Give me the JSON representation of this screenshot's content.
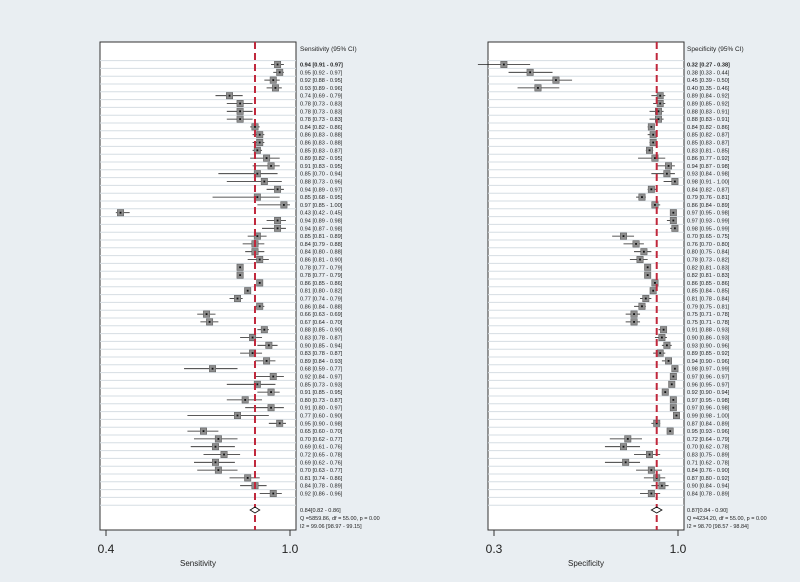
{
  "chart_data": [
    {
      "type": "forest",
      "title": "Sensitivity (95% CI)",
      "xlabel": "Sensitivity",
      "scale": "log",
      "xlim": [
        0.4,
        1.0
      ],
      "ticks": [
        {
          "value": 0.4,
          "label": "0.4"
        },
        {
          "value": 1.0,
          "label": "1.0"
        }
      ],
      "pooled_line": 0.84,
      "studies": [
        {
          "est": 0.94,
          "lo": 0.91,
          "hi": 0.97,
          "label": "0.94 [0.91 - 0.97]"
        },
        {
          "est": 0.95,
          "lo": 0.92,
          "hi": 0.97,
          "label": "0.95 [0.92 - 0.97]"
        },
        {
          "est": 0.92,
          "lo": 0.88,
          "hi": 0.95,
          "label": "0.92 [0.88 - 0.95]"
        },
        {
          "est": 0.93,
          "lo": 0.89,
          "hi": 0.96,
          "label": "0.93 [0.89 - 0.96]"
        },
        {
          "est": 0.74,
          "lo": 0.69,
          "hi": 0.79,
          "label": "0.74 [0.69 - 0.79]"
        },
        {
          "est": 0.78,
          "lo": 0.73,
          "hi": 0.83,
          "label": "0.78 [0.73 - 0.83]"
        },
        {
          "est": 0.78,
          "lo": 0.73,
          "hi": 0.83,
          "label": "0.78 [0.73 - 0.83]"
        },
        {
          "est": 0.78,
          "lo": 0.73,
          "hi": 0.83,
          "label": "0.78 [0.73 - 0.83]"
        },
        {
          "est": 0.84,
          "lo": 0.82,
          "hi": 0.86,
          "label": "0.84 [0.82 - 0.86]"
        },
        {
          "est": 0.86,
          "lo": 0.83,
          "hi": 0.88,
          "label": "0.86 [0.83 - 0.88]"
        },
        {
          "est": 0.86,
          "lo": 0.83,
          "hi": 0.88,
          "label": "0.86 [0.83 - 0.88]"
        },
        {
          "est": 0.85,
          "lo": 0.83,
          "hi": 0.87,
          "label": "0.85 [0.83 - 0.87]"
        },
        {
          "est": 0.89,
          "lo": 0.82,
          "hi": 0.95,
          "label": "0.89 [0.82 - 0.95]"
        },
        {
          "est": 0.91,
          "lo": 0.83,
          "hi": 0.95,
          "label": "0.91 [0.83 - 0.95]"
        },
        {
          "est": 0.85,
          "lo": 0.7,
          "hi": 0.94,
          "label": "0.85 [0.70 - 0.94]"
        },
        {
          "est": 0.88,
          "lo": 0.73,
          "hi": 0.96,
          "label": "0.88 [0.73 - 0.96]"
        },
        {
          "est": 0.94,
          "lo": 0.89,
          "hi": 0.97,
          "label": "0.94 [0.89 - 0.97]"
        },
        {
          "est": 0.85,
          "lo": 0.68,
          "hi": 0.95,
          "label": "0.85 [0.68 - 0.95]"
        },
        {
          "est": 0.97,
          "lo": 0.85,
          "hi": 1.0,
          "label": "0.97 [0.85 - 1.00]"
        },
        {
          "est": 0.43,
          "lo": 0.42,
          "hi": 0.45,
          "label": "0.43 [0.42 - 0.45]"
        },
        {
          "est": 0.94,
          "lo": 0.89,
          "hi": 0.98,
          "label": "0.94 [0.89 - 0.98]"
        },
        {
          "est": 0.94,
          "lo": 0.87,
          "hi": 0.98,
          "label": "0.94 [0.87 - 0.98]"
        },
        {
          "est": 0.85,
          "lo": 0.81,
          "hi": 0.89,
          "label": "0.85 [0.81 - 0.89]"
        },
        {
          "est": 0.84,
          "lo": 0.79,
          "hi": 0.88,
          "label": "0.84 [0.79 - 0.88]"
        },
        {
          "est": 0.84,
          "lo": 0.8,
          "hi": 0.88,
          "label": "0.84 [0.80 - 0.88]"
        },
        {
          "est": 0.86,
          "lo": 0.81,
          "hi": 0.9,
          "label": "0.86 [0.81 - 0.90]"
        },
        {
          "est": 0.78,
          "lo": 0.77,
          "hi": 0.79,
          "label": "0.78 [0.77 - 0.79]"
        },
        {
          "est": 0.78,
          "lo": 0.77,
          "hi": 0.79,
          "label": "0.78 [0.77 - 0.79]"
        },
        {
          "est": 0.86,
          "lo": 0.85,
          "hi": 0.86,
          "label": "0.86 [0.85 - 0.86]"
        },
        {
          "est": 0.81,
          "lo": 0.8,
          "hi": 0.82,
          "label": "0.81 [0.80 - 0.82]"
        },
        {
          "est": 0.77,
          "lo": 0.74,
          "hi": 0.79,
          "label": "0.77 [0.74 - 0.79]"
        },
        {
          "est": 0.86,
          "lo": 0.84,
          "hi": 0.88,
          "label": "0.86 [0.84 - 0.88]"
        },
        {
          "est": 0.66,
          "lo": 0.63,
          "hi": 0.69,
          "label": "0.66 [0.63 - 0.69]"
        },
        {
          "est": 0.67,
          "lo": 0.64,
          "hi": 0.7,
          "label": "0.67 [0.64 - 0.70]"
        },
        {
          "est": 0.88,
          "lo": 0.85,
          "hi": 0.9,
          "label": "0.88 [0.85 - 0.90]"
        },
        {
          "est": 0.83,
          "lo": 0.78,
          "hi": 0.87,
          "label": "0.83 [0.78 - 0.87]"
        },
        {
          "est": 0.9,
          "lo": 0.85,
          "hi": 0.94,
          "label": "0.90 [0.85 - 0.94]"
        },
        {
          "est": 0.83,
          "lo": 0.78,
          "hi": 0.87,
          "label": "0.83 [0.78 - 0.87]"
        },
        {
          "est": 0.89,
          "lo": 0.84,
          "hi": 0.93,
          "label": "0.89 [0.84 - 0.93]"
        },
        {
          "est": 0.68,
          "lo": 0.59,
          "hi": 0.77,
          "label": "0.68 [0.59 - 0.77]"
        },
        {
          "est": 0.92,
          "lo": 0.84,
          "hi": 0.97,
          "label": "0.92 [0.84 - 0.97]"
        },
        {
          "est": 0.85,
          "lo": 0.73,
          "hi": 0.93,
          "label": "0.85 [0.73 - 0.93]"
        },
        {
          "est": 0.91,
          "lo": 0.85,
          "hi": 0.95,
          "label": "0.91 [0.85 - 0.95]"
        },
        {
          "est": 0.8,
          "lo": 0.73,
          "hi": 0.87,
          "label": "0.80 [0.73 - 0.87]"
        },
        {
          "est": 0.91,
          "lo": 0.8,
          "hi": 0.97,
          "label": "0.91 [0.80 - 0.97]"
        },
        {
          "est": 0.77,
          "lo": 0.6,
          "hi": 0.9,
          "label": "0.77 [0.60 - 0.90]"
        },
        {
          "est": 0.95,
          "lo": 0.9,
          "hi": 0.98,
          "label": "0.95 [0.90 - 0.98]"
        },
        {
          "est": 0.65,
          "lo": 0.6,
          "hi": 0.7,
          "label": "0.65 [0.60 - 0.70]"
        },
        {
          "est": 0.7,
          "lo": 0.62,
          "hi": 0.77,
          "label": "0.70 [0.62 - 0.77]"
        },
        {
          "est": 0.69,
          "lo": 0.61,
          "hi": 0.76,
          "label": "0.69 [0.61 - 0.76]"
        },
        {
          "est": 0.72,
          "lo": 0.65,
          "hi": 0.78,
          "label": "0.72 [0.65 - 0.78]"
        },
        {
          "est": 0.69,
          "lo": 0.62,
          "hi": 0.76,
          "label": "0.69 [0.62 - 0.76]"
        },
        {
          "est": 0.7,
          "lo": 0.63,
          "hi": 0.77,
          "label": "0.70 [0.63 - 0.77]"
        },
        {
          "est": 0.81,
          "lo": 0.74,
          "hi": 0.86,
          "label": "0.81 [0.74 - 0.86]"
        },
        {
          "est": 0.84,
          "lo": 0.78,
          "hi": 0.89,
          "label": "0.84 [0.78 - 0.89]"
        },
        {
          "est": 0.92,
          "lo": 0.86,
          "hi": 0.96,
          "label": "0.92 [0.86 - 0.96]"
        }
      ],
      "pooled": {
        "est": 0.84,
        "lo": 0.82,
        "hi": 0.86,
        "label": "0.84[0.82 - 0.86]"
      },
      "stats": [
        "Q =5859.86, df = 55.00, p =  0.00",
        "I2 = 99.06 [98.97 - 99.15]"
      ]
    },
    {
      "type": "forest",
      "title": "Specificity (95% CI)",
      "xlabel": "Specificity",
      "scale": "log",
      "xlim": [
        0.3,
        1.0
      ],
      "ticks": [
        {
          "value": 0.3,
          "label": "0.3"
        },
        {
          "value": 1.0,
          "label": "1.0"
        }
      ],
      "pooled_line": 0.87,
      "studies": [
        {
          "est": 0.32,
          "lo": 0.27,
          "hi": 0.38,
          "label": "0.32 [0.27 - 0.38]"
        },
        {
          "est": 0.38,
          "lo": 0.33,
          "hi": 0.44,
          "label": "0.38 [0.33 - 0.44]"
        },
        {
          "est": 0.45,
          "lo": 0.39,
          "hi": 0.5,
          "label": "0.45 [0.39 - 0.50]"
        },
        {
          "est": 0.4,
          "lo": 0.35,
          "hi": 0.46,
          "label": "0.40 [0.35 - 0.46]"
        },
        {
          "est": 0.89,
          "lo": 0.84,
          "hi": 0.92,
          "label": "0.89 [0.84 - 0.92]"
        },
        {
          "est": 0.89,
          "lo": 0.85,
          "hi": 0.92,
          "label": "0.89 [0.85 - 0.92]"
        },
        {
          "est": 0.88,
          "lo": 0.83,
          "hi": 0.91,
          "label": "0.88 [0.83 - 0.91]"
        },
        {
          "est": 0.88,
          "lo": 0.83,
          "hi": 0.91,
          "label": "0.88 [0.83 - 0.91]"
        },
        {
          "est": 0.84,
          "lo": 0.82,
          "hi": 0.86,
          "label": "0.84 [0.82 - 0.86]"
        },
        {
          "est": 0.85,
          "lo": 0.82,
          "hi": 0.87,
          "label": "0.85 [0.82 - 0.87]"
        },
        {
          "est": 0.85,
          "lo": 0.83,
          "hi": 0.87,
          "label": "0.85 [0.83 - 0.87]"
        },
        {
          "est": 0.83,
          "lo": 0.81,
          "hi": 0.85,
          "label": "0.83 [0.81 - 0.85]"
        },
        {
          "est": 0.86,
          "lo": 0.77,
          "hi": 0.92,
          "label": "0.86 [0.77 - 0.92]"
        },
        {
          "est": 0.94,
          "lo": 0.87,
          "hi": 0.98,
          "label": "0.94 [0.87 - 0.98]"
        },
        {
          "est": 0.93,
          "lo": 0.84,
          "hi": 0.98,
          "label": "0.93 [0.84 - 0.98]"
        },
        {
          "est": 0.98,
          "lo": 0.91,
          "hi": 1.0,
          "label": "0.98 [0.91 - 1.00]"
        },
        {
          "est": 0.84,
          "lo": 0.82,
          "hi": 0.87,
          "label": "0.84 [0.82 - 0.87]"
        },
        {
          "est": 0.79,
          "lo": 0.76,
          "hi": 0.81,
          "label": "0.79 [0.76 - 0.81]"
        },
        {
          "est": 0.86,
          "lo": 0.84,
          "hi": 0.89,
          "label": "0.86 [0.84 - 0.89]"
        },
        {
          "est": 0.97,
          "lo": 0.95,
          "hi": 0.98,
          "label": "0.97 [0.95 - 0.98]"
        },
        {
          "est": 0.97,
          "lo": 0.93,
          "hi": 0.99,
          "label": "0.97 [0.93 - 0.99]"
        },
        {
          "est": 0.98,
          "lo": 0.95,
          "hi": 0.99,
          "label": "0.98 [0.95 - 0.99]"
        },
        {
          "est": 0.7,
          "lo": 0.65,
          "hi": 0.75,
          "label": "0.70 [0.65 - 0.75]"
        },
        {
          "est": 0.76,
          "lo": 0.7,
          "hi": 0.8,
          "label": "0.76 [0.70 - 0.80]"
        },
        {
          "est": 0.8,
          "lo": 0.75,
          "hi": 0.84,
          "label": "0.80 [0.75 - 0.84]"
        },
        {
          "est": 0.78,
          "lo": 0.73,
          "hi": 0.82,
          "label": "0.78 [0.73 - 0.82]"
        },
        {
          "est": 0.82,
          "lo": 0.81,
          "hi": 0.83,
          "label": "0.82 [0.81 - 0.83]"
        },
        {
          "est": 0.82,
          "lo": 0.81,
          "hi": 0.83,
          "label": "0.82 [0.81 - 0.83]"
        },
        {
          "est": 0.86,
          "lo": 0.85,
          "hi": 0.86,
          "label": "0.86 [0.85 - 0.86]"
        },
        {
          "est": 0.85,
          "lo": 0.84,
          "hi": 0.85,
          "label": "0.85 [0.84 - 0.85]"
        },
        {
          "est": 0.81,
          "lo": 0.78,
          "hi": 0.84,
          "label": "0.81 [0.78 - 0.84]"
        },
        {
          "est": 0.79,
          "lo": 0.75,
          "hi": 0.81,
          "label": "0.79 [0.75 - 0.81]"
        },
        {
          "est": 0.75,
          "lo": 0.71,
          "hi": 0.78,
          "label": "0.75 [0.71 - 0.78]"
        },
        {
          "est": 0.75,
          "lo": 0.71,
          "hi": 0.78,
          "label": "0.75 [0.71 - 0.78]"
        },
        {
          "est": 0.91,
          "lo": 0.88,
          "hi": 0.93,
          "label": "0.91 [0.88 - 0.93]"
        },
        {
          "est": 0.9,
          "lo": 0.86,
          "hi": 0.93,
          "label": "0.90 [0.86 - 0.93]"
        },
        {
          "est": 0.93,
          "lo": 0.9,
          "hi": 0.96,
          "label": "0.93 [0.90 - 0.96]"
        },
        {
          "est": 0.89,
          "lo": 0.85,
          "hi": 0.92,
          "label": "0.89 [0.85 - 0.92]"
        },
        {
          "est": 0.94,
          "lo": 0.9,
          "hi": 0.96,
          "label": "0.94 [0.90 - 0.96]"
        },
        {
          "est": 0.98,
          "lo": 0.97,
          "hi": 0.99,
          "label": "0.98 [0.97 - 0.99]"
        },
        {
          "est": 0.97,
          "lo": 0.96,
          "hi": 0.97,
          "label": "0.97 [0.96 - 0.97]"
        },
        {
          "est": 0.96,
          "lo": 0.95,
          "hi": 0.97,
          "label": "0.96 [0.95 - 0.97]"
        },
        {
          "est": 0.92,
          "lo": 0.9,
          "hi": 0.94,
          "label": "0.92 [0.90 - 0.94]"
        },
        {
          "est": 0.97,
          "lo": 0.95,
          "hi": 0.98,
          "label": "0.97 [0.95 - 0.98]"
        },
        {
          "est": 0.97,
          "lo": 0.96,
          "hi": 0.98,
          "label": "0.97 [0.96 - 0.98]"
        },
        {
          "est": 0.99,
          "lo": 0.98,
          "hi": 1.0,
          "label": "0.99 [0.98 - 1.00]"
        },
        {
          "est": 0.87,
          "lo": 0.84,
          "hi": 0.89,
          "label": "0.87 [0.84 - 0.89]"
        },
        {
          "est": 0.95,
          "lo": 0.93,
          "hi": 0.96,
          "label": "0.95 [0.93 - 0.96]"
        },
        {
          "est": 0.72,
          "lo": 0.64,
          "hi": 0.79,
          "label": "0.72 [0.64 - 0.79]"
        },
        {
          "est": 0.7,
          "lo": 0.62,
          "hi": 0.78,
          "label": "0.70 [0.62 - 0.78]"
        },
        {
          "est": 0.83,
          "lo": 0.75,
          "hi": 0.89,
          "label": "0.83 [0.75 - 0.89]"
        },
        {
          "est": 0.71,
          "lo": 0.62,
          "hi": 0.78,
          "label": "0.71 [0.62 - 0.78]"
        },
        {
          "est": 0.84,
          "lo": 0.76,
          "hi": 0.9,
          "label": "0.84 [0.76 - 0.90]"
        },
        {
          "est": 0.87,
          "lo": 0.8,
          "hi": 0.92,
          "label": "0.87 [0.80 - 0.92]"
        },
        {
          "est": 0.9,
          "lo": 0.84,
          "hi": 0.94,
          "label": "0.90 [0.84 - 0.94]"
        },
        {
          "est": 0.84,
          "lo": 0.78,
          "hi": 0.89,
          "label": "0.84 [0.78 - 0.89]"
        }
      ],
      "pooled": {
        "est": 0.87,
        "lo": 0.84,
        "hi": 0.9,
        "label": "0.87[0.84 - 0.90]"
      },
      "stats": [
        "Q =4234.20, df = 55.00, p =  0.00",
        "I2 = 98.70 [98.57 - 98.84]"
      ]
    }
  ],
  "colors": {
    "background": "#e9eef2",
    "panel": "#ffffff",
    "marker": "#8e8e8e",
    "ci_line": "#222222",
    "ref_line": "#c0283c"
  }
}
